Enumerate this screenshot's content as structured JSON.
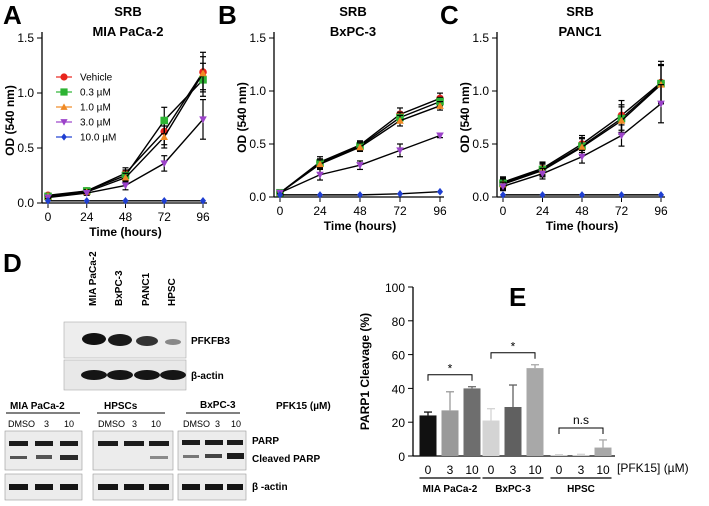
{
  "panels": [
    "A",
    "B",
    "C",
    "D",
    "E"
  ],
  "chart_data": [
    {
      "type": "line",
      "panel": "A",
      "title_lines": [
        "SRB",
        "MIA PaCa-2"
      ],
      "xlabel": "Time (hours)",
      "ylabel": "OD (540 nm)",
      "x": [
        0,
        24,
        48,
        72,
        96
      ],
      "xticks": [
        "0",
        "24",
        "48",
        "72",
        "96"
      ],
      "yticks": [
        "0.0",
        "0.5",
        "1.0",
        "1.5"
      ],
      "ylim": [
        0,
        1.5
      ],
      "legend": "top-left",
      "series": [
        {
          "name": "Vehicle",
          "color": "#e8251d",
          "marker": "circle",
          "values": [
            0.07,
            0.11,
            0.27,
            0.65,
            1.19
          ],
          "err": [
            0.01,
            0.02,
            0.05,
            0.12,
            0.18
          ]
        },
        {
          "name": "0.3 µM",
          "color": "#2db333",
          "marker": "square",
          "values": [
            0.06,
            0.11,
            0.25,
            0.75,
            1.12
          ],
          "err": [
            0.01,
            0.02,
            0.05,
            0.12,
            0.15
          ]
        },
        {
          "name": "1.0 µM",
          "color": "#f08a24",
          "marker": "triangle-up",
          "values": [
            0.06,
            0.1,
            0.23,
            0.6,
            1.18
          ],
          "err": [
            0.01,
            0.02,
            0.04,
            0.1,
            0.15
          ]
        },
        {
          "name": "3.0 µM",
          "color": "#9b42c9",
          "marker": "triangle-down",
          "values": [
            0.05,
            0.09,
            0.16,
            0.36,
            0.76
          ],
          "err": [
            0.01,
            0.02,
            0.04,
            0.07,
            0.18
          ]
        },
        {
          "name": "10.0 µM",
          "color": "#1f3fd1",
          "marker": "diamond",
          "values": [
            0.02,
            0.02,
            0.02,
            0.02,
            0.02
          ],
          "err": [
            0,
            0,
            0,
            0,
            0
          ]
        }
      ]
    },
    {
      "type": "line",
      "panel": "B",
      "title_lines": [
        "SRB",
        "BxPC-3"
      ],
      "xlabel": "Time (hours)",
      "ylabel": "OD (540 nm)",
      "x": [
        0,
        24,
        48,
        72,
        96
      ],
      "xticks": [
        "0",
        "24",
        "48",
        "72",
        "96"
      ],
      "yticks": [
        "0.0",
        "0.5",
        "1.0",
        "1.5"
      ],
      "ylim": [
        0,
        1.5
      ],
      "series": [
        {
          "name": "Vehicle",
          "color": "#e8251d",
          "marker": "circle",
          "values": [
            0.04,
            0.33,
            0.49,
            0.78,
            0.93
          ],
          "err": [
            0.01,
            0.05,
            0.04,
            0.06,
            0.05
          ]
        },
        {
          "name": "0.3 µM",
          "color": "#2db333",
          "marker": "square",
          "values": [
            0.04,
            0.32,
            0.48,
            0.75,
            0.9
          ],
          "err": [
            0.01,
            0.04,
            0.04,
            0.05,
            0.04
          ]
        },
        {
          "name": "1.0 µM",
          "color": "#f08a24",
          "marker": "triangle-up",
          "values": [
            0.04,
            0.31,
            0.47,
            0.72,
            0.86
          ],
          "err": [
            0.01,
            0.04,
            0.04,
            0.05,
            0.04
          ]
        },
        {
          "name": "3.0 µM",
          "color": "#9b42c9",
          "marker": "triangle-down",
          "values": [
            0.04,
            0.21,
            0.3,
            0.44,
            0.58
          ],
          "err": [
            0.01,
            0.05,
            0.04,
            0.06,
            0.02
          ]
        },
        {
          "name": "10.0 µM",
          "color": "#1f3fd1",
          "marker": "diamond",
          "values": [
            0.02,
            0.02,
            0.02,
            0.03,
            0.05
          ],
          "err": [
            0,
            0,
            0,
            0,
            0
          ]
        }
      ]
    },
    {
      "type": "line",
      "panel": "C",
      "title_lines": [
        "SRB",
        "PANC1"
      ],
      "xlabel": "Time (hours)",
      "ylabel": "OD (540 nm)",
      "x": [
        0,
        24,
        48,
        72,
        96
      ],
      "xticks": [
        "0",
        "24",
        "48",
        "72",
        "96"
      ],
      "yticks": [
        "0.0",
        "0.5",
        "1.0",
        "1.5"
      ],
      "ylim": [
        0,
        1.5
      ],
      "series": [
        {
          "name": "Vehicle",
          "color": "#e8251d",
          "marker": "circle",
          "values": [
            0.14,
            0.27,
            0.5,
            0.77,
            1.08
          ],
          "err": [
            0.05,
            0.06,
            0.08,
            0.14,
            0.2
          ]
        },
        {
          "name": "0.3 µM",
          "color": "#2db333",
          "marker": "square",
          "values": [
            0.13,
            0.26,
            0.48,
            0.74,
            1.07
          ],
          "err": [
            0.05,
            0.06,
            0.08,
            0.13,
            0.18
          ]
        },
        {
          "name": "1.0 µM",
          "color": "#f08a24",
          "marker": "triangle-up",
          "values": [
            0.12,
            0.25,
            0.47,
            0.72,
            1.06
          ],
          "err": [
            0.05,
            0.06,
            0.08,
            0.13,
            0.18
          ]
        },
        {
          "name": "3.0 µM",
          "color": "#9b42c9",
          "marker": "triangle-down",
          "values": [
            0.1,
            0.22,
            0.38,
            0.58,
            0.88
          ],
          "err": [
            0.04,
            0.05,
            0.06,
            0.1,
            0.18
          ]
        },
        {
          "name": "10.0 µM",
          "color": "#1f3fd1",
          "marker": "diamond",
          "values": [
            0.02,
            0.02,
            0.02,
            0.02,
            0.02
          ],
          "err": [
            0,
            0,
            0,
            0,
            0
          ]
        }
      ]
    },
    {
      "type": "bar",
      "panel": "E",
      "ylabel": "PARP1 Cleavage (%)",
      "yticks": [
        "0",
        "20",
        "40",
        "60",
        "80",
        "100"
      ],
      "ylim": [
        0,
        100
      ],
      "xunit_label": "[PFK15] (µM)",
      "groups": [
        {
          "name": "MIA PaCa-2",
          "doses": [
            "0",
            "3",
            "10"
          ],
          "values": [
            24,
            27,
            40
          ],
          "err": [
            2,
            11,
            1
          ],
          "colors": [
            "#111111",
            "#9a9a9a",
            "#6e6e6e"
          ],
          "sig": "*"
        },
        {
          "name": "BxPC-3",
          "doses": [
            "0",
            "3",
            "10"
          ],
          "values": [
            21,
            29,
            52
          ],
          "err": [
            7,
            13,
            2
          ],
          "colors": [
            "#d4d4d4",
            "#606060",
            "#a8a8a8"
          ],
          "sig": "*"
        },
        {
          "name": "HPSC",
          "doses": [
            "0",
            "3",
            "10"
          ],
          "values": [
            0.5,
            0.5,
            5
          ],
          "err": [
            0.3,
            0.5,
            4.5
          ],
          "colors": [
            "#d4d4d4",
            "#d4d4d4",
            "#a8a8a8"
          ],
          "sig": "n.s"
        }
      ]
    }
  ],
  "blots": {
    "top": {
      "lanes": [
        "MIA PaCa-2",
        "BxPC-3",
        "PANC1",
        "HPSC"
      ],
      "rows": [
        "PFKFB3",
        "β-actin"
      ]
    },
    "bottom": {
      "groups": [
        {
          "name": "MIA PaCa-2",
          "lanes": [
            "DMSO",
            "3",
            "10"
          ]
        },
        {
          "name": "HPSCs",
          "lanes": [
            "DMSO",
            "3",
            "10"
          ]
        },
        {
          "name": "BxPC-3",
          "lanes": [
            "DMSO",
            "3",
            "10"
          ]
        }
      ],
      "dose_label": "PFK15 (µM)",
      "rows": [
        "PARP",
        "Cleaved PARP",
        "β -actin"
      ]
    }
  }
}
